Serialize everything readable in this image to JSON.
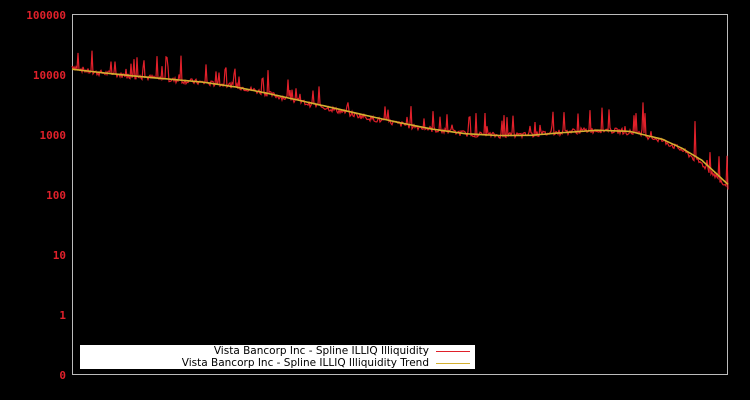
{
  "chart_data": {
    "type": "line",
    "title": "",
    "xlabel": "",
    "ylabel": "",
    "yscale": "log",
    "ylim": [
      0.1,
      100000
    ],
    "ytick_labels": [
      "100000",
      "10000",
      "1000",
      "100",
      "10",
      "1",
      "0"
    ],
    "grid": false,
    "legend_position": "lower left",
    "colors": {
      "background": "#000000",
      "axis": "#bbbbbb",
      "tick_label": "#e0202a"
    },
    "series": [
      {
        "name": "Vista Bancorp Inc - Spline ILLIQ Illiquidity",
        "color": "#e0202a",
        "x_frac": [
          0.0,
          0.03,
          0.06,
          0.09,
          0.12,
          0.15,
          0.18,
          0.21,
          0.24,
          0.27,
          0.3,
          0.33,
          0.36,
          0.39,
          0.42,
          0.45,
          0.48,
          0.51,
          0.54,
          0.57,
          0.6,
          0.63,
          0.66,
          0.69,
          0.72,
          0.75,
          0.78,
          0.81,
          0.84,
          0.87,
          0.9,
          0.93,
          0.96,
          0.99,
          1.0
        ],
        "values": [
          14000,
          11000,
          10500,
          9500,
          9000,
          8200,
          7800,
          7200,
          6800,
          5800,
          4800,
          4000,
          3300,
          2800,
          2300,
          1950,
          1650,
          1450,
          1280,
          1150,
          1050,
          1000,
          980,
          990,
          1050,
          1120,
          1180,
          1200,
          1150,
          1000,
          800,
          560,
          330,
          170,
          130
        ],
        "spikes": [
          {
            "x_frac": 0.143,
            "value": 20000
          },
          {
            "x_frac": 0.166,
            "value": 21000
          },
          {
            "x_frac": 0.204,
            "value": 15000
          },
          {
            "x_frac": 0.224,
            "value": 11000
          },
          {
            "x_frac": 0.299,
            "value": 12000
          },
          {
            "x_frac": 0.342,
            "value": 6000
          },
          {
            "x_frac": 0.367,
            "value": 5500
          },
          {
            "x_frac": 0.42,
            "value": 3500
          },
          {
            "x_frac": 0.477,
            "value": 3000
          },
          {
            "x_frac": 0.51,
            "value": 2000
          },
          {
            "x_frac": 0.55,
            "value": 2500
          },
          {
            "x_frac": 0.607,
            "value": 2000
          },
          {
            "x_frac": 0.673,
            "value": 2100
          },
          {
            "x_frac": 0.75,
            "value": 2400
          },
          {
            "x_frac": 0.79,
            "value": 2600
          },
          {
            "x_frac": 0.87,
            "value": 3500
          },
          {
            "x_frac": 0.95,
            "value": 1700
          },
          {
            "x_frac": 0.998,
            "value": 450
          }
        ]
      },
      {
        "name": "Vista Bancorp Inc - Spline ILLIQ Illiquidity Trend",
        "color": "#d4b030",
        "x_frac": [
          0.0,
          0.05,
          0.1,
          0.15,
          0.2,
          0.25,
          0.3,
          0.35,
          0.4,
          0.45,
          0.5,
          0.55,
          0.6,
          0.65,
          0.7,
          0.75,
          0.8,
          0.85,
          0.9,
          0.93,
          0.96,
          0.98,
          1.0
        ],
        "values": [
          12500,
          10800,
          9500,
          8500,
          7600,
          6300,
          4900,
          3700,
          2800,
          2100,
          1600,
          1250,
          1050,
          980,
          990,
          1100,
          1200,
          1150,
          850,
          600,
          380,
          240,
          150
        ]
      }
    ]
  },
  "legend": {
    "items": [
      {
        "label": "Vista Bancorp Inc - Spline ILLIQ Illiquidity",
        "color": "#e0202a"
      },
      {
        "label": "Vista Bancorp Inc - Spline ILLIQ Illiquidity Trend",
        "color": "#d4b030"
      }
    ]
  }
}
